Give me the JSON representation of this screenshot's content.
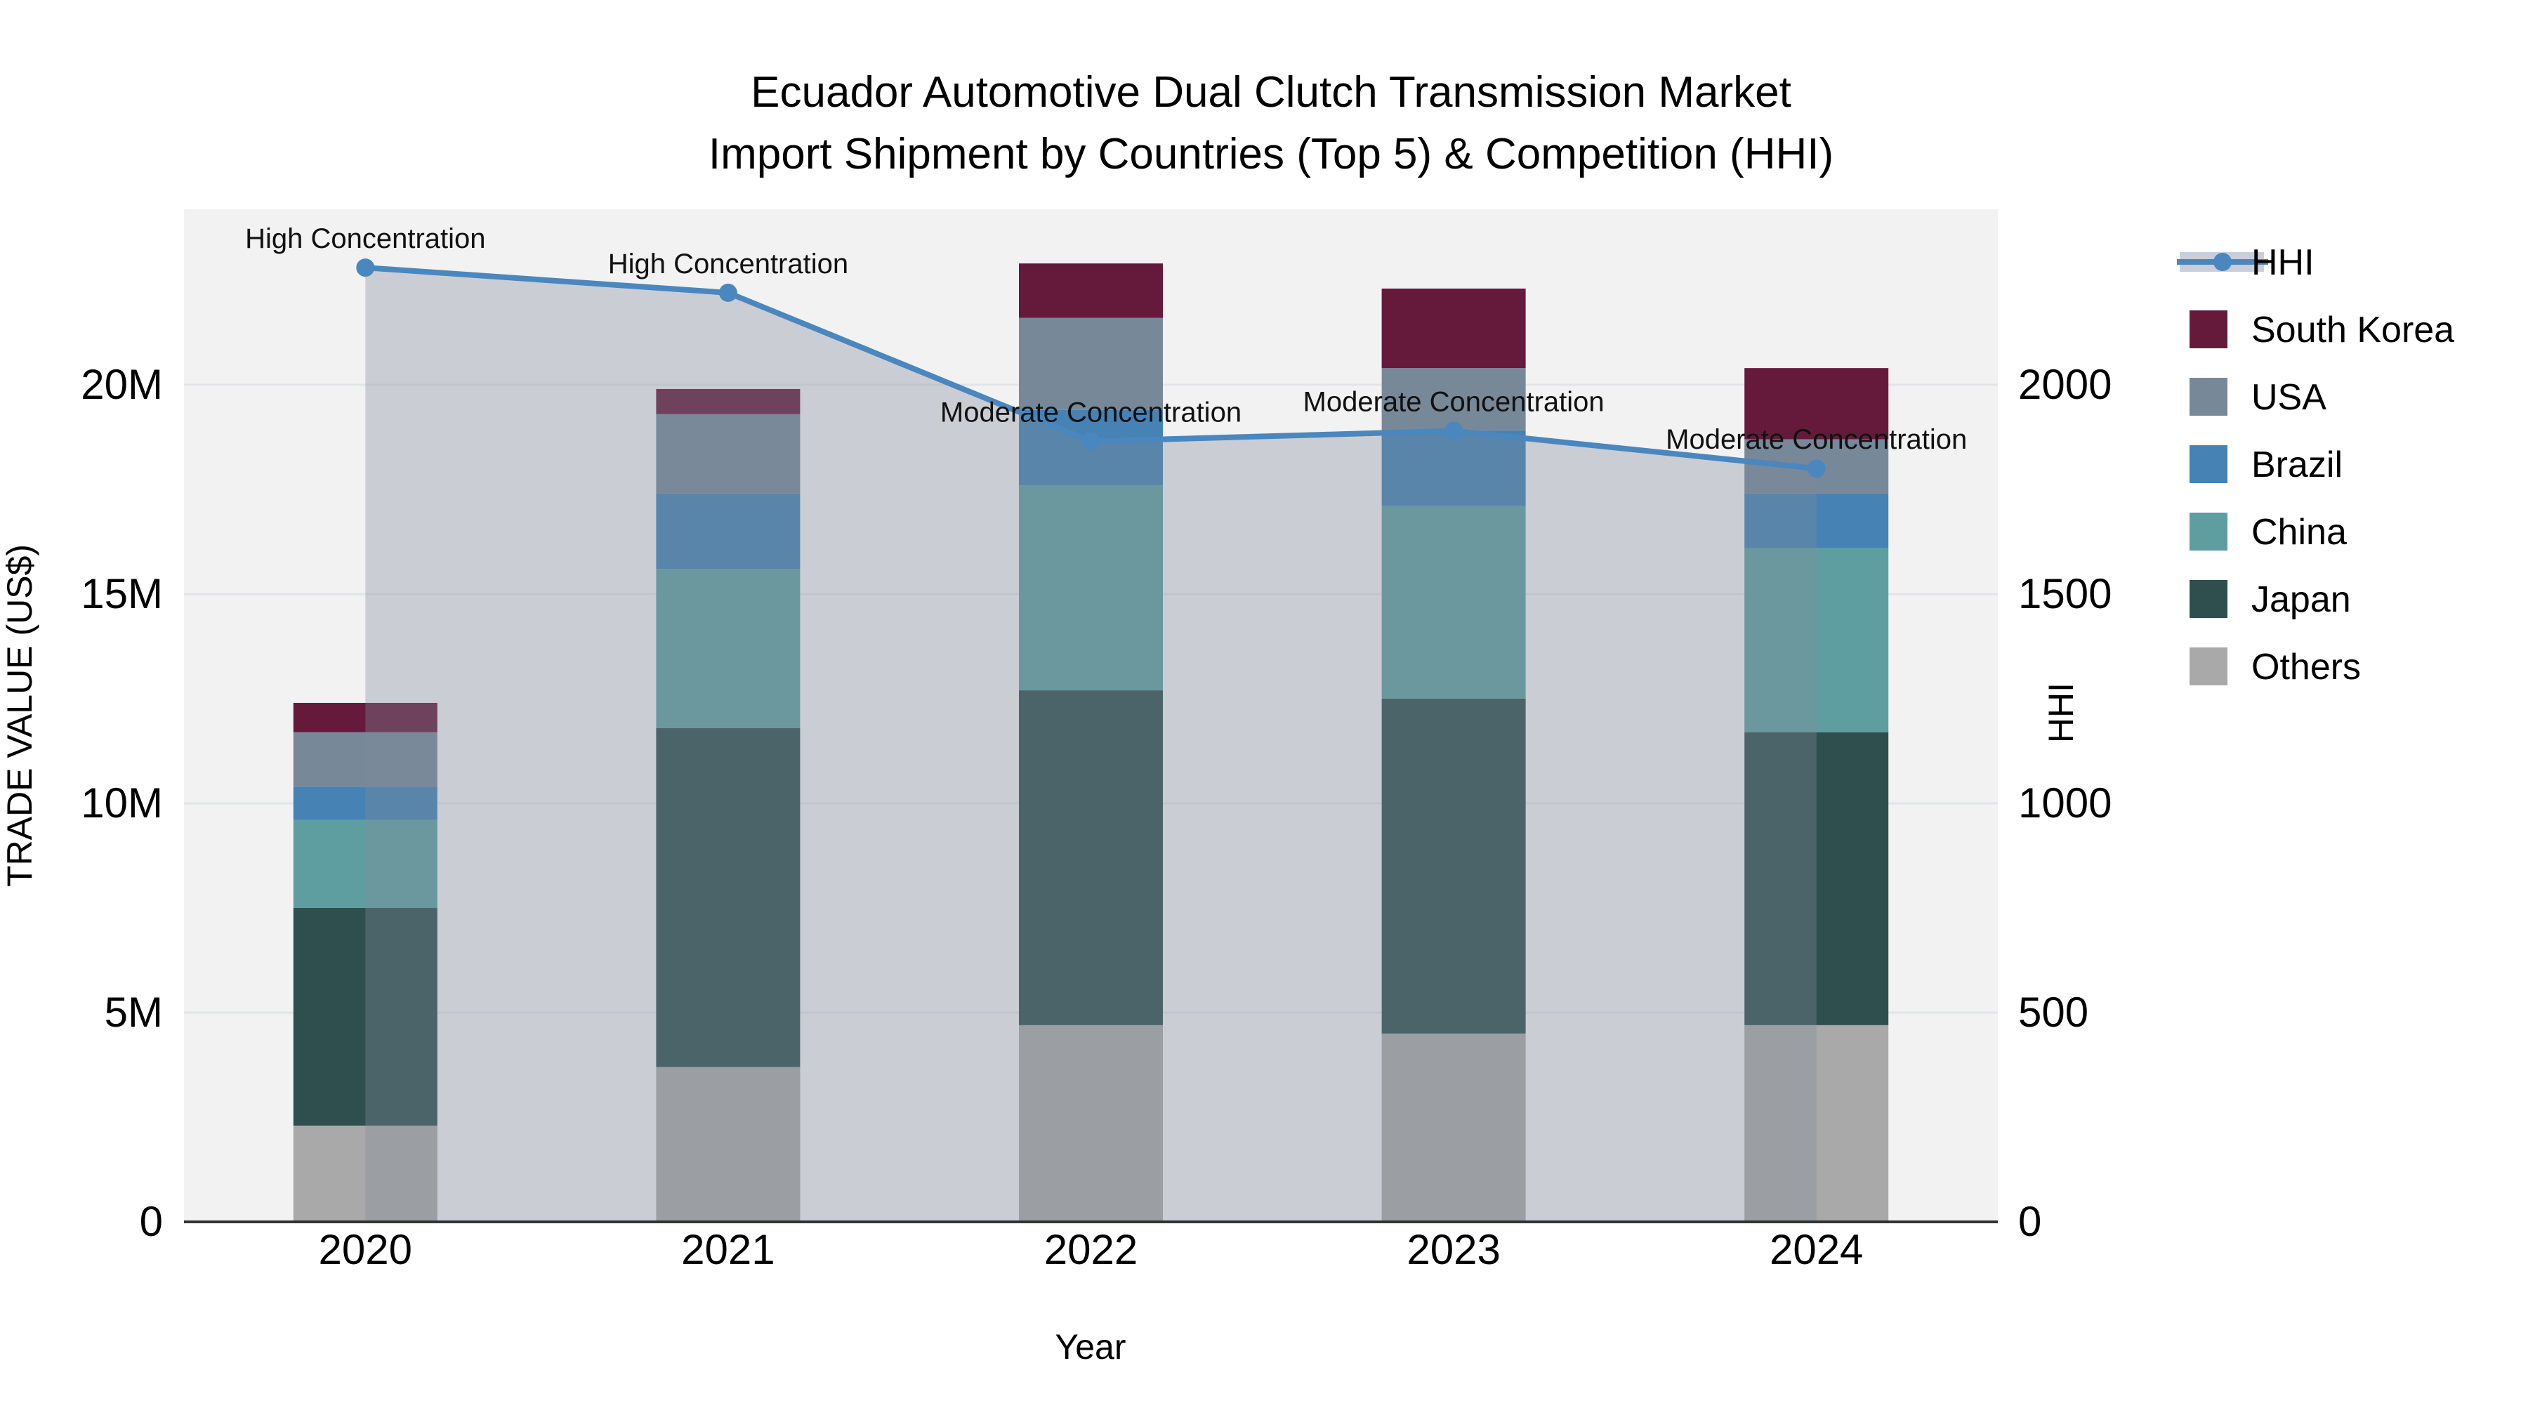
{
  "title": {
    "line1": "Ecuador Automotive Dual Clutch Transmission Market",
    "line2": "Import Shipment by Countries (Top 5) & Competition (HHI)"
  },
  "chart_data": {
    "type": "stacked-bar+line",
    "categories": [
      "2020",
      "2021",
      "2022",
      "2023",
      "2024"
    ],
    "unit": "US$ millions",
    "x_label": "Year",
    "y_left": {
      "label": "TRADE VALUE (US$)",
      "ticks": [
        0,
        5,
        10,
        15,
        20
      ],
      "tick_labels": [
        "0",
        "5M",
        "10M",
        "15M",
        "20M"
      ],
      "max_m": 24.2
    },
    "y_right": {
      "label": "HHI",
      "ticks": [
        0,
        500,
        1000,
        1500,
        2000
      ],
      "tick_labels": [
        "0",
        "500",
        "1000",
        "1500",
        "2000"
      ],
      "max": 2420
    },
    "series": [
      {
        "name": "South Korea",
        "color": "#651A3B",
        "values": [
          0.7,
          0.6,
          1.3,
          1.9,
          1.7
        ]
      },
      {
        "name": "USA",
        "color": "#778899",
        "values": [
          1.3,
          1.9,
          2.2,
          1.5,
          1.3
        ]
      },
      {
        "name": "Brazil",
        "color": "#4682B4",
        "values": [
          0.8,
          1.8,
          1.8,
          1.8,
          1.3
        ]
      },
      {
        "name": "China",
        "color": "#5F9EA0",
        "values": [
          2.1,
          3.8,
          4.9,
          4.6,
          4.4
        ]
      },
      {
        "name": "Japan",
        "color": "#2F4F4F",
        "values": [
          5.2,
          8.1,
          8.0,
          8.0,
          7.0
        ]
      },
      {
        "name": "Others",
        "color": "#A9A9A9",
        "values": [
          2.3,
          3.7,
          4.7,
          4.5,
          4.7
        ]
      }
    ],
    "stack_order_bottom_to_top": [
      "Others",
      "Japan",
      "China",
      "Brazil",
      "USA",
      "South Korea"
    ],
    "totals_m": [
      12.4,
      19.9,
      22.9,
      22.3,
      20.4
    ],
    "line": {
      "name": "HHI",
      "axis": "right",
      "color": "#4A87BE",
      "area_fill": "rgba(130,140,155,0.35)",
      "values": [
        2280,
        2220,
        1865,
        1890,
        1800
      ]
    },
    "annotations": [
      "High Concentration",
      "High Concentration",
      "Moderate Concentration",
      "Moderate Concentration",
      "Moderate Concentration"
    ],
    "legend_position": "right",
    "legend_order": [
      "HHI",
      "South Korea",
      "USA",
      "Brazil",
      "China",
      "Japan",
      "Others"
    ],
    "grid": true,
    "plot_bg": "#F2F2F3",
    "grid_color": "#E3E4E7",
    "spine_color": "#333333"
  }
}
